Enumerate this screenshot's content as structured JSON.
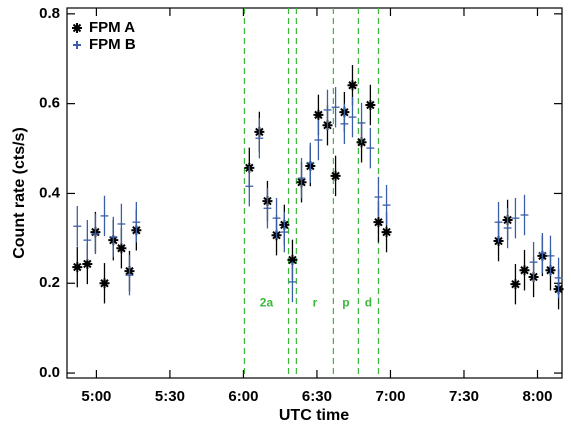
{
  "chart_data": {
    "type": "scatter",
    "x_label": "UTC time",
    "y_label": "Count rate (cts/s)",
    "xlim": [
      288,
      490
    ],
    "ylim": [
      -0.011,
      0.813
    ],
    "xticks": [
      {
        "value": 300,
        "label": "5:00"
      },
      {
        "value": 330,
        "label": "5:30"
      },
      {
        "value": 360,
        "label": "6:00"
      },
      {
        "value": 390,
        "label": "6:30"
      },
      {
        "value": 420,
        "label": "7:00"
      },
      {
        "value": 450,
        "label": "7:30"
      },
      {
        "value": 480,
        "label": "8:00"
      }
    ],
    "yticks": [
      {
        "value": 0,
        "label": "0.0"
      },
      0.2,
      0.4,
      0.6,
      0.8
    ],
    "legend": "top-left",
    "x": [
      292.2,
      296.3,
      299.6,
      303.3,
      306.9,
      310.2,
      313.5,
      316.3,
      362.4,
      366.5,
      369.8,
      373.5,
      376.7,
      380,
      383.7,
      387.3,
      390.6,
      394.3,
      397.6,
      401.2,
      404.5,
      408.2,
      411.8,
      415.1,
      418.4,
      464.1,
      467.8,
      471,
      474.7,
      478.4,
      482,
      485.3,
      488.6
    ],
    "series": [
      {
        "name": "FPM A",
        "color": "#000000",
        "marker": "asterisk",
        "yerr": 0.045,
        "values": [
          0.236,
          0.243,
          0.314,
          0.2,
          0.296,
          0.278,
          0.227,
          0.318,
          0.457,
          0.537,
          0.383,
          0.307,
          0.33,
          0.252,
          0.425,
          0.461,
          0.575,
          0.552,
          0.439,
          0.581,
          0.641,
          0.514,
          0.597,
          0.336,
          0.314,
          0.294,
          0.341,
          0.198,
          0.229,
          0.214,
          0.261,
          0.229,
          0.187
        ]
      },
      {
        "name": "FPM B",
        "color": "#3a5fa8",
        "marker": "plus",
        "yerr": 0.045,
        "xerr": 1.6,
        "values": [
          0.327,
          0.296,
          0.31,
          0.35,
          0.303,
          0.332,
          0.218,
          0.336,
          0.416,
          0.523,
          0.367,
          0.345,
          0.314,
          0.203,
          0.434,
          0.468,
          0.519,
          0.586,
          0.592,
          0.555,
          0.57,
          0.557,
          0.501,
          0.392,
          0.374,
          0.336,
          0.323,
          0.345,
          0.352,
          0.247,
          0.267,
          0.261,
          0.212
        ]
      }
    ],
    "regions": {
      "color": "#3cb83c",
      "boundaries": [
        360.4,
        378.4,
        381.6,
        396.7,
        406.9,
        415.1
      ],
      "labels": [
        {
          "text": "2a",
          "x": 369.4
        },
        {
          "text": "r",
          "x": 389.2
        },
        {
          "text": "p",
          "x": 401.8
        },
        {
          "text": "d",
          "x": 411
        }
      ],
      "label_y": 0.155
    }
  }
}
